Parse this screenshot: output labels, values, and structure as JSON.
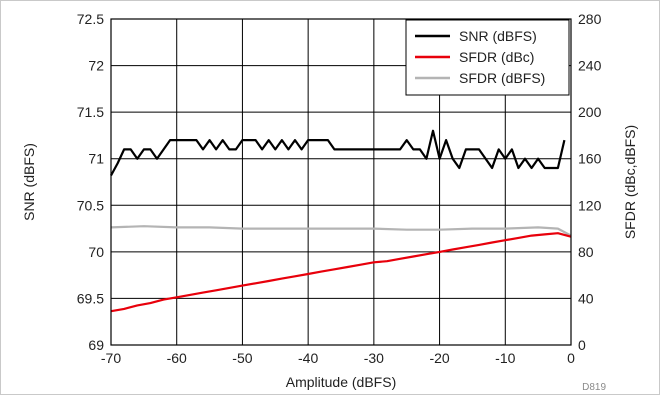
{
  "chart_data": {
    "type": "line",
    "xlabel": "Amplitude (dBFS)",
    "ylabel_left": "SNR (dBFS)",
    "ylabel_right": "SFDR (dBc,dBFS)",
    "tag": "D819",
    "xlim": [
      -70,
      0
    ],
    "ylim_left": [
      69,
      72.5
    ],
    "ylim_right": [
      0,
      280
    ],
    "x_ticks": [
      "-70",
      "-60",
      "-50",
      "-40",
      "-30",
      "-20",
      "-10",
      "0"
    ],
    "y_left_ticks": [
      "69",
      "69.5",
      "70",
      "70.5",
      "71",
      "71.5",
      "72",
      "72.5"
    ],
    "y_right_ticks": [
      "0",
      "40",
      "80",
      "120",
      "160",
      "200",
      "240",
      "280"
    ],
    "grid": true,
    "legend_position": "top-right",
    "colors": {
      "snr": "#000000",
      "sfdr_dbc": "#e8000b",
      "sfdr_dbfs": "#b4b4b4"
    },
    "series": [
      {
        "name": "SNR (dBFS)",
        "axis": "left",
        "x": [
          -70,
          -69,
          -68,
          -67,
          -66,
          -65,
          -64,
          -63,
          -62,
          -61,
          -60,
          -59,
          -58,
          -57,
          -56,
          -55,
          -54,
          -53,
          -52,
          -51,
          -50,
          -49,
          -48,
          -47,
          -46,
          -45,
          -44,
          -43,
          -42,
          -41,
          -40,
          -39,
          -38,
          -37,
          -36,
          -35,
          -34,
          -33,
          -32,
          -31,
          -30,
          -29,
          -28,
          -27,
          -26,
          -25,
          -24,
          -23,
          -22,
          -21,
          -20,
          -19,
          -18,
          -17,
          -16,
          -15,
          -14,
          -13,
          -12,
          -11,
          -10,
          -9,
          -8,
          -7,
          -6,
          -5,
          -4,
          -3,
          -2,
          -1
        ],
        "y": [
          70.82,
          70.95,
          71.1,
          71.1,
          71.0,
          71.1,
          71.1,
          71.0,
          71.1,
          71.2,
          71.2,
          71.2,
          71.2,
          71.2,
          71.1,
          71.2,
          71.1,
          71.2,
          71.1,
          71.1,
          71.2,
          71.2,
          71.2,
          71.1,
          71.2,
          71.1,
          71.2,
          71.1,
          71.2,
          71.1,
          71.2,
          71.2,
          71.2,
          71.2,
          71.1,
          71.1,
          71.1,
          71.1,
          71.1,
          71.1,
          71.1,
          71.1,
          71.1,
          71.1,
          71.1,
          71.2,
          71.1,
          71.1,
          71.0,
          71.3,
          71.0,
          71.2,
          71.0,
          70.9,
          71.1,
          71.1,
          71.1,
          71.0,
          70.9,
          71.1,
          71.0,
          71.1,
          70.9,
          71.0,
          70.9,
          71.0,
          70.9,
          70.9,
          70.9,
          71.2
        ]
      },
      {
        "name": "SFDR (dBc)",
        "axis": "right",
        "x": [
          -70,
          -68,
          -66,
          -64,
          -62,
          -60,
          -58,
          -56,
          -54,
          -52,
          -50,
          -48,
          -46,
          -44,
          -42,
          -40,
          -38,
          -36,
          -34,
          -32,
          -30,
          -28,
          -26,
          -24,
          -22,
          -20,
          -18,
          -16,
          -14,
          -12,
          -10,
          -8,
          -6,
          -4,
          -2,
          0
        ],
        "y": [
          29,
          31,
          34,
          36,
          39,
          41,
          43,
          45,
          47,
          49,
          51,
          53,
          55,
          57,
          59,
          61,
          63,
          65,
          67,
          69,
          71,
          72,
          74,
          76,
          78,
          80,
          82,
          84,
          86,
          88,
          90,
          92,
          94,
          95,
          96,
          93
        ]
      },
      {
        "name": "SFDR (dBFS)",
        "axis": "right",
        "x": [
          -70,
          -65,
          -60,
          -55,
          -50,
          -45,
          -40,
          -35,
          -30,
          -25,
          -20,
          -15,
          -10,
          -5,
          -2,
          0
        ],
        "y": [
          101,
          102,
          101,
          101,
          100,
          100,
          100,
          100,
          100,
          99,
          99,
          100,
          100,
          101,
          100,
          94
        ]
      }
    ]
  }
}
